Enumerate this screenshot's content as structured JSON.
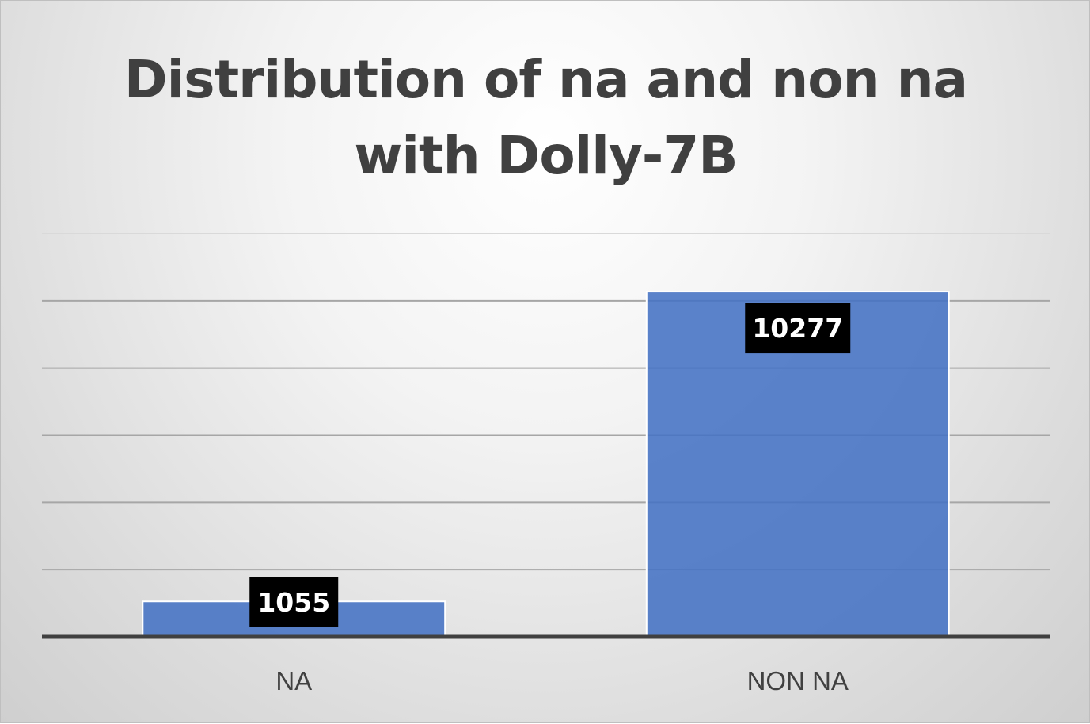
{
  "chart_data": {
    "type": "bar",
    "title_line1": "Distribution of na and non na",
    "title_line2": "with Dolly-7B",
    "categories": [
      "NA",
      "NON NA"
    ],
    "values": [
      1055,
      10277
    ],
    "data_labels": [
      "1055",
      "10277"
    ],
    "xlabel": "",
    "ylabel": "",
    "ylim": [
      0,
      12000
    ],
    "y_gridline_step": 2000,
    "grid": true,
    "legend": "none",
    "bar_color": "#4472c4",
    "data_label_background": "#000000",
    "data_label_color": "#ffffff"
  }
}
